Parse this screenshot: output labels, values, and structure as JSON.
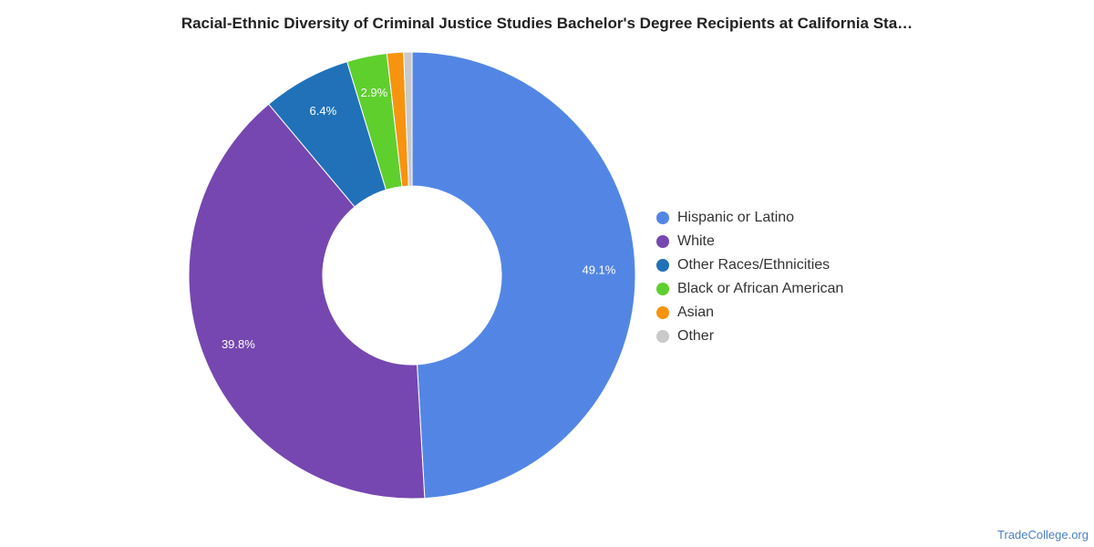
{
  "chart_data": {
    "type": "pie",
    "title": "Racial-Ethnic Diversity of Criminal Justice Studies Bachelor's Degree Recipients at California Sta…",
    "donut": true,
    "legend_position": "right",
    "slices": [
      {
        "label": "Hispanic or Latino",
        "value": 49.1,
        "display": "49.1%",
        "color": "#5386e4"
      },
      {
        "label": "White",
        "value": 39.8,
        "display": "39.8%",
        "color": "#7647b0"
      },
      {
        "label": "Other Races/Ethnicities",
        "value": 6.4,
        "display": "6.4%",
        "color": "#2171b8"
      },
      {
        "label": "Black or African American",
        "value": 2.9,
        "display": "2.9%",
        "color": "#5fcf2e"
      },
      {
        "label": "Asian",
        "value": 1.2,
        "display": "",
        "color": "#f7930f"
      },
      {
        "label": "Other",
        "value": 0.6,
        "display": "",
        "color": "#c9c9c9"
      }
    ]
  },
  "watermark": "TradeCollege.org"
}
